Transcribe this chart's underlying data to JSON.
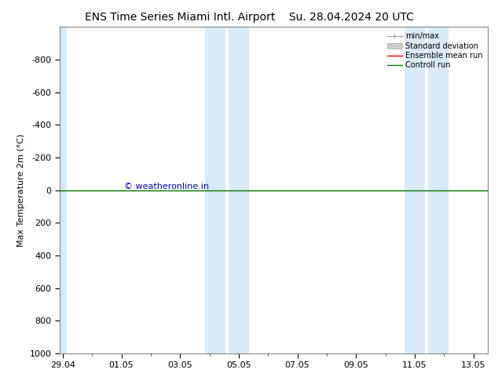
{
  "title_left": "ENS Time Series Miami Intl. Airport",
  "title_right": "Su. 28.04.2024 20 UTC",
  "ylabel": "Max Temperature 2m (°C)",
  "ylim_top": -1000,
  "ylim_bottom": 1000,
  "yticks": [
    -800,
    -600,
    -400,
    -200,
    0,
    200,
    400,
    600,
    800,
    1000
  ],
  "xtick_labels": [
    "29.04",
    "01.05",
    "03.05",
    "05.05",
    "07.05",
    "09.05",
    "11.05",
    "13.05"
  ],
  "xtick_positions": [
    0,
    2,
    4,
    6,
    8,
    10,
    12,
    14
  ],
  "xlim": [
    -0.1,
    14.5
  ],
  "shaded_bands": [
    {
      "start": -0.1,
      "end": 0.15
    },
    {
      "start": 4.85,
      "end": 5.55
    },
    {
      "start": 5.65,
      "end": 6.35
    },
    {
      "start": 11.65,
      "end": 12.35
    },
    {
      "start": 12.45,
      "end": 13.15
    }
  ],
  "green_line_y": 0,
  "red_line_y": 0,
  "background_color": "#ffffff",
  "plot_bg_color": "#ffffff",
  "shade_color": "#d8eaf7",
  "green_line_color": "#008000",
  "red_line_color": "#ff0000",
  "watermark_text": "© weatheronline.in",
  "watermark_color": "#0000bb",
  "legend_entries": [
    "min/max",
    "Standard deviation",
    "Ensemble mean run",
    "Controll run"
  ],
  "legend_line_color": "#aaaaaa",
  "legend_std_color": "#cccccc",
  "legend_red_color": "#ff0000",
  "legend_green_color": "#008000",
  "font_size": 8,
  "title_font_size": 10
}
